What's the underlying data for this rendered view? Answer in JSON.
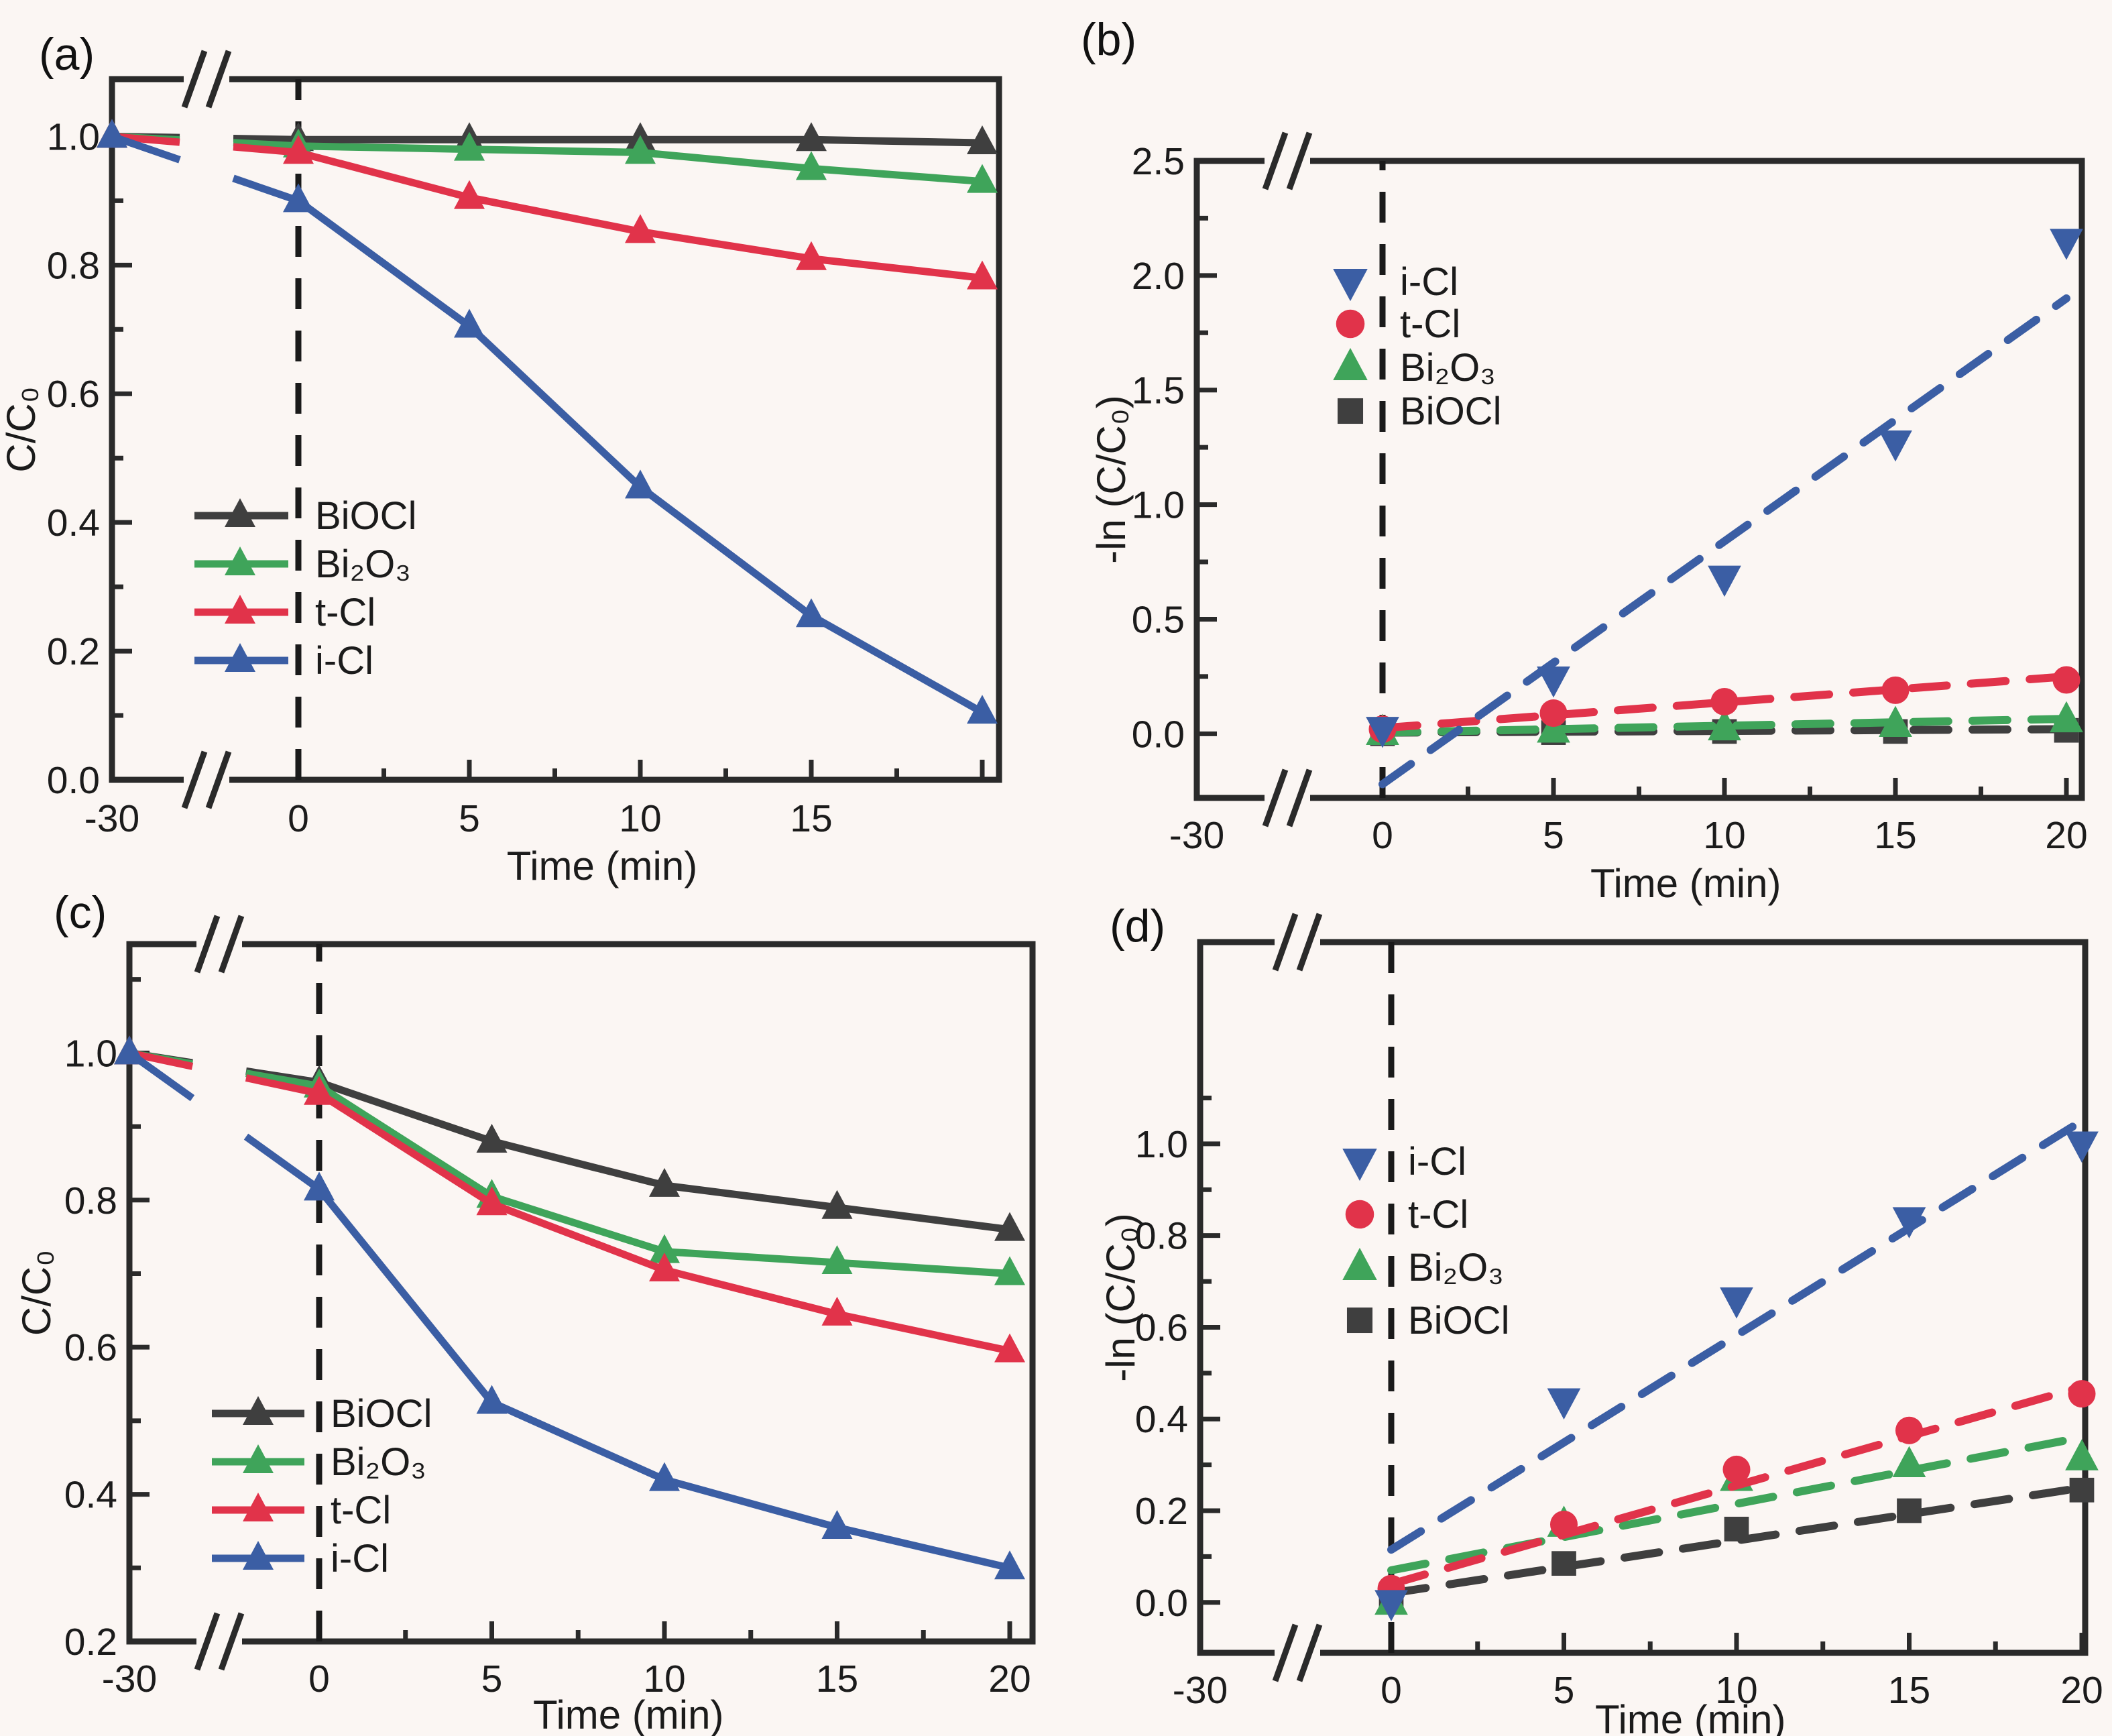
{
  "figure": {
    "background": "#fbf6f3",
    "axis_color": "#2a2a2a",
    "guide_line_color": "#1a1a1a",
    "panel_labels": {
      "a": "(a)",
      "b": "(b)",
      "c": "(c)",
      "d": "(d)"
    }
  },
  "colors": {
    "BiOCl": "#3f3f3f",
    "Bi2O3": "#3fa45a",
    "tCl": "#e1334a",
    "iCl": "#3b5ea4"
  },
  "chart_data": [
    {
      "panel": "a",
      "type": "line",
      "title": "",
      "xlabel": "Time (min)",
      "ylabel": "C/C₀",
      "x_break": true,
      "zero_guide": true,
      "ylim": [
        0.0,
        1.089
      ],
      "y_major": [
        [
          0.0,
          "0.0"
        ],
        [
          0.2,
          "0.2"
        ],
        [
          0.4,
          "0.4"
        ],
        [
          0.6,
          "0.6"
        ],
        [
          0.8,
          "0.8"
        ],
        [
          1.0,
          "1.0"
        ]
      ],
      "y_minor": [
        0.1,
        0.3,
        0.5,
        0.7,
        0.9
      ],
      "x_major": [
        [
          -30,
          "-30"
        ],
        [
          0,
          "0"
        ],
        [
          5,
          "5"
        ],
        [
          10,
          "10"
        ],
        [
          15,
          "15"
        ],
        [
          20,
          ""
        ]
      ],
      "x_minor": [
        2.5,
        7.5,
        12.5,
        17.5
      ],
      "legend_style": "line",
      "series": [
        {
          "name": "BiOCl",
          "color": "#3f3f3f",
          "marker": "triangle-up",
          "x": [
            -30,
            0,
            5,
            10,
            15,
            20
          ],
          "values": [
            1.0,
            0.995,
            0.995,
            0.995,
            0.995,
            0.99
          ]
        },
        {
          "name": "Bi₂O₃",
          "color": "#3fa45a",
          "marker": "triangle-up",
          "x": [
            -30,
            0,
            5,
            10,
            15,
            20
          ],
          "values": [
            1.0,
            0.985,
            0.98,
            0.975,
            0.95,
            0.93
          ]
        },
        {
          "name": "t-Cl",
          "color": "#e1334a",
          "marker": "triangle-up",
          "x": [
            -30,
            0,
            5,
            10,
            15,
            20
          ],
          "values": [
            1.0,
            0.975,
            0.905,
            0.852,
            0.81,
            0.78
          ]
        },
        {
          "name": "i-Cl",
          "color": "#3b5ea4",
          "marker": "triangle-up",
          "x": [
            -30,
            0,
            5,
            10,
            15,
            20
          ],
          "values": [
            1.0,
            0.9,
            0.705,
            0.455,
            0.255,
            0.105
          ]
        }
      ]
    },
    {
      "panel": "b",
      "type": "scatter",
      "title": "",
      "xlabel": "Time (min)",
      "ylabel": "-ln (C/C₀)",
      "x_break": true,
      "zero_guide": true,
      "ylim": [
        -0.28,
        2.5
      ],
      "y_major": [
        [
          0.0,
          "0.0"
        ],
        [
          0.5,
          "0.5"
        ],
        [
          1.0,
          "1.0"
        ],
        [
          1.5,
          "1.5"
        ],
        [
          2.0,
          "2.0"
        ],
        [
          2.5,
          "2.5"
        ]
      ],
      "y_minor": [
        0.25,
        0.75,
        1.25,
        1.75,
        2.25
      ],
      "x_major": [
        [
          -30,
          "-30"
        ],
        [
          0,
          "0"
        ],
        [
          5,
          "5"
        ],
        [
          10,
          "10"
        ],
        [
          15,
          "15"
        ],
        [
          20,
          "20"
        ]
      ],
      "x_minor": [
        2.5,
        7.5,
        12.5,
        17.5
      ],
      "legend_style": "marker",
      "series": [
        {
          "name": "i-Cl",
          "color": "#3b5ea4",
          "marker": "triangle-down",
          "x": [
            0,
            5,
            10,
            15,
            20
          ],
          "values": [
            0.02,
            0.24,
            0.68,
            1.27,
            2.15
          ],
          "fit": {
            "x": [
              0,
              20
            ],
            "y": [
              -0.22,
              1.9
            ]
          }
        },
        {
          "name": "t-Cl",
          "color": "#e1334a",
          "marker": "circle",
          "x": [
            0,
            5,
            10,
            15,
            20
          ],
          "values": [
            0.02,
            0.09,
            0.14,
            0.19,
            0.235
          ],
          "fit": {
            "x": [
              0,
              20
            ],
            "y": [
              0.025,
              0.25
            ]
          }
        },
        {
          "name": "Bi₂O₃",
          "color": "#3fa45a",
          "marker": "triangle-up",
          "x": [
            0,
            5,
            10,
            15,
            20
          ],
          "values": [
            0.005,
            0.015,
            0.025,
            0.04,
            0.06
          ],
          "fit": {
            "x": [
              0,
              20
            ],
            "y": [
              0.005,
              0.065
            ]
          }
        },
        {
          "name": "BiOCl",
          "color": "#3f3f3f",
          "marker": "square",
          "x": [
            0,
            5,
            10,
            15,
            20
          ],
          "values": [
            0.0,
            0.005,
            0.01,
            0.01,
            0.015
          ],
          "fit": {
            "x": [
              0,
              20
            ],
            "y": [
              0.005,
              0.02
            ]
          }
        }
      ]
    },
    {
      "panel": "c",
      "type": "line",
      "title": "",
      "xlabel": "Time (min)",
      "ylabel": "C/C₀",
      "x_break": true,
      "zero_guide": true,
      "ylim": [
        0.2,
        1.148
      ],
      "y_major": [
        [
          0.2,
          "0.2"
        ],
        [
          0.4,
          "0.4"
        ],
        [
          0.6,
          "0.6"
        ],
        [
          0.8,
          "0.8"
        ],
        [
          1.0,
          "1.0"
        ]
      ],
      "y_minor": [
        0.3,
        0.5,
        0.7,
        0.9,
        1.1
      ],
      "x_major": [
        [
          -30,
          "-30"
        ],
        [
          0,
          "0"
        ],
        [
          5,
          "5"
        ],
        [
          10,
          "10"
        ],
        [
          15,
          "15"
        ],
        [
          20,
          "20"
        ]
      ],
      "x_minor": [
        2.5,
        7.5,
        12.5,
        17.5
      ],
      "legend_style": "line",
      "series": [
        {
          "name": "BiOCl",
          "color": "#3f3f3f",
          "marker": "triangle-up",
          "x": [
            -30,
            0,
            5,
            10,
            15,
            20
          ],
          "values": [
            1.0,
            0.96,
            0.88,
            0.82,
            0.79,
            0.76
          ]
        },
        {
          "name": "Bi₂O₃",
          "color": "#3fa45a",
          "marker": "triangle-up",
          "x": [
            -30,
            0,
            5,
            10,
            15,
            20
          ],
          "values": [
            1.0,
            0.955,
            0.805,
            0.73,
            0.715,
            0.7
          ]
        },
        {
          "name": "t-Cl",
          "color": "#e1334a",
          "marker": "triangle-up",
          "x": [
            -30,
            0,
            5,
            10,
            15,
            20
          ],
          "values": [
            1.0,
            0.945,
            0.795,
            0.705,
            0.645,
            0.595
          ]
        },
        {
          "name": "i-Cl",
          "color": "#3b5ea4",
          "marker": "triangle-up",
          "x": [
            -30,
            0,
            5,
            10,
            15,
            20
          ],
          "values": [
            1.0,
            0.815,
            0.525,
            0.42,
            0.355,
            0.3
          ]
        }
      ]
    },
    {
      "panel": "d",
      "type": "scatter",
      "title": "",
      "xlabel": "Time (min)",
      "ylabel": "-ln (C/C₀)",
      "x_break": true,
      "zero_guide": true,
      "ylim": [
        -0.11,
        1.44
      ],
      "y_major": [
        [
          0.0,
          "0.0"
        ],
        [
          0.2,
          "0.2"
        ],
        [
          0.4,
          "0.4"
        ],
        [
          0.6,
          "0.6"
        ],
        [
          0.8,
          "0.8"
        ],
        [
          1.0,
          "1.0"
        ]
      ],
      "y_minor": [
        0.1,
        0.3,
        0.5,
        0.7,
        0.9,
        1.1
      ],
      "x_major": [
        [
          -30,
          "-30"
        ],
        [
          0,
          "0"
        ],
        [
          5,
          "5"
        ],
        [
          10,
          "10"
        ],
        [
          15,
          "15"
        ],
        [
          20,
          "20"
        ]
      ],
      "x_minor": [
        2.5,
        7.5,
        12.5,
        17.5
      ],
      "legend_style": "marker",
      "series": [
        {
          "name": "i-Cl",
          "color": "#3b5ea4",
          "marker": "triangle-down",
          "x": [
            0,
            5,
            10,
            15,
            20
          ],
          "values": [
            0.0,
            0.44,
            0.66,
            0.835,
            1.0
          ],
          "fit": {
            "x": [
              0,
              20
            ],
            "y": [
              0.115,
              1.05
            ]
          }
        },
        {
          "name": "t-Cl",
          "color": "#e1334a",
          "marker": "circle",
          "x": [
            0,
            5,
            10,
            15,
            20
          ],
          "values": [
            0.03,
            0.17,
            0.29,
            0.375,
            0.455
          ],
          "fit": {
            "x": [
              0,
              20
            ],
            "y": [
              0.04,
              0.47
            ]
          }
        },
        {
          "name": "Bi₂O₃",
          "color": "#3fa45a",
          "marker": "triangle-up",
          "x": [
            0,
            5,
            10,
            15,
            20
          ],
          "values": [
            0.0,
            0.17,
            0.27,
            0.3,
            0.315
          ],
          "fit": {
            "x": [
              0,
              20
            ],
            "y": [
              0.07,
              0.36
            ]
          }
        },
        {
          "name": "BiOCl",
          "color": "#3f3f3f",
          "marker": "square",
          "x": [
            0,
            5,
            10,
            15,
            20
          ],
          "values": [
            0.01,
            0.085,
            0.16,
            0.2,
            0.245
          ],
          "fit": {
            "x": [
              0,
              20
            ],
            "y": [
              0.02,
              0.25
            ]
          }
        }
      ]
    }
  ]
}
